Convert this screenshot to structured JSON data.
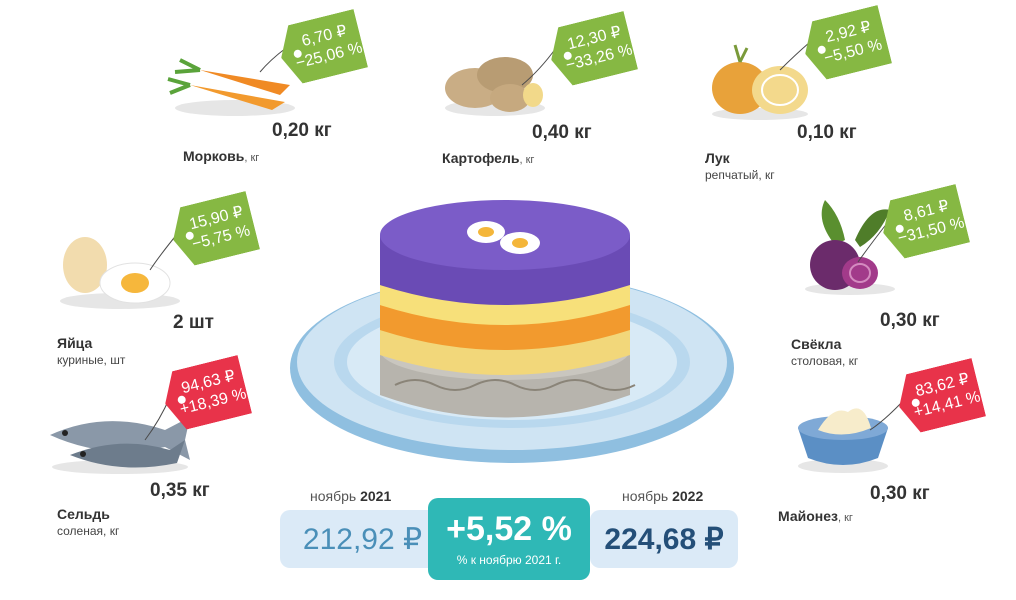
{
  "items": [
    {
      "name": "Морковь",
      "unit": ", кг",
      "sub": "",
      "qty": "0,20 кг",
      "price": "6,70 ₽",
      "change": "−25,06 %"
    },
    {
      "name": "Картофель",
      "unit": ", кг",
      "sub": "",
      "qty": "0,40 кг",
      "price": "12,30 ₽",
      "change": "−33,26 %"
    },
    {
      "name": "Лук",
      "unit": "",
      "sub": "репчатый, кг",
      "qty": "0,10 кг",
      "price": "2,92 ₽",
      "change": "−5,50 %"
    },
    {
      "name": "Яйца",
      "unit": "",
      "sub": "куриные, шт",
      "qty": "2 шт",
      "price": "15,90 ₽",
      "change": "−5,75 %"
    },
    {
      "name": "Свёкла",
      "unit": "",
      "sub": "столовая, кг",
      "qty": "0,30 кг",
      "price": "8,61 ₽",
      "change": "−31,50 %"
    },
    {
      "name": "Сельдь",
      "unit": "",
      "sub": "соленая, кг",
      "qty": "0,35 кг",
      "price": "94,63 ₽",
      "change": "+18,39 %"
    },
    {
      "name": "Майонез",
      "unit": ", кг",
      "sub": "",
      "qty": "0,30 кг",
      "price": "83,62 ₽",
      "change": "+14,41 %"
    }
  ],
  "summary": {
    "left_caption": "ноябрь",
    "left_year": "2021",
    "left_value": "212,92 ₽",
    "right_caption": "ноябрь",
    "right_year": "2022",
    "right_value": "224,68 ₽",
    "change": "+5,52 %",
    "change_note": "% к ноябрю 2021 г."
  },
  "colors": {
    "tag_down": "#86b843",
    "tag_up": "#e8334a",
    "center_box": "#2fb8b6",
    "value_box": "#dbeaf7",
    "value_text": "#2b5f8a"
  }
}
